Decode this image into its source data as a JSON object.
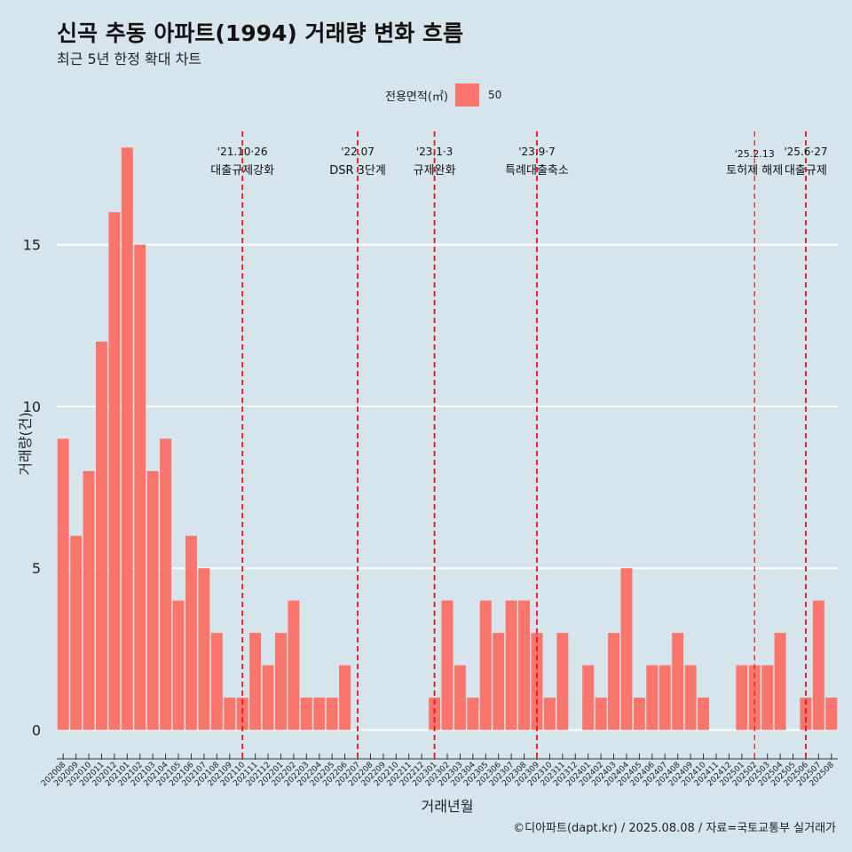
{
  "title": "신곡 추동 아파트(1994) 거래량 변화 흐름",
  "subtitle": "최근 5년 한정 확대 차트",
  "legend": {
    "title": "전용면적(㎡)",
    "entry": "50"
  },
  "caption": "©디아파트(dapt.kr) / 2025.08.08 / 자료=국토교통부 실거래가",
  "colors": {
    "background": "#d6e4ec",
    "bar": "#fa766d",
    "grid": "#ffffff",
    "event_line": "#e8141c"
  },
  "chart_data": {
    "type": "bar",
    "xlabel": "거래년월",
    "ylabel": "거래량(건)",
    "ylim": [
      -0.7,
      18.5
    ],
    "yticks": [
      0,
      5,
      10,
      15
    ],
    "grid": true,
    "legend_position": "top",
    "categories": [
      "202008",
      "202009",
      "202010",
      "202011",
      "202012",
      "202101",
      "202102",
      "202103",
      "202104",
      "202105",
      "202106",
      "202107",
      "202108",
      "202109",
      "202110",
      "202111",
      "202112",
      "202201",
      "202202",
      "202203",
      "202204",
      "202205",
      "202206",
      "202207",
      "202208",
      "202209",
      "202210",
      "202211",
      "202212",
      "202301",
      "202302",
      "202303",
      "202304",
      "202305",
      "202306",
      "202307",
      "202308",
      "202309",
      "202310",
      "202311",
      "202312",
      "202401",
      "202402",
      "202403",
      "202404",
      "202405",
      "202406",
      "202407",
      "202408",
      "202409",
      "202410",
      "202411",
      "202412",
      "202501",
      "202502",
      "202503",
      "202504",
      "202505",
      "202506",
      "202507",
      "202508"
    ],
    "series": [
      {
        "name": "50",
        "values": [
          9,
          6,
          8,
          12,
          16,
          18,
          15,
          8,
          9,
          4,
          6,
          5,
          3,
          1,
          1,
          3,
          2,
          3,
          4,
          1,
          1,
          1,
          2,
          0,
          0,
          0,
          0,
          0,
          0,
          1,
          4,
          2,
          1,
          4,
          3,
          4,
          4,
          3,
          1,
          3,
          0,
          2,
          1,
          3,
          5,
          1,
          2,
          2,
          3,
          2,
          1,
          0,
          0,
          2,
          2,
          2,
          3,
          0,
          1,
          4,
          1
        ]
      }
    ],
    "events": [
      {
        "category": "202110",
        "date": "'21.10·26",
        "label": "대출규제강화",
        "tier": 1
      },
      {
        "category": "202207",
        "date": "'22.07",
        "label": "DSR 3단계",
        "tier": 1
      },
      {
        "category": "202301",
        "date": "'23.1·3",
        "label": "규제완화",
        "tier": 1
      },
      {
        "category": "202309",
        "date": "'23.9·7",
        "label": "특례대출축소",
        "tier": 1
      },
      {
        "category": "202502",
        "date": "'25.2.13",
        "label": "토허제 해제",
        "tier": 2
      },
      {
        "category": "202506",
        "date": "'25.6·27",
        "label": "대출규제",
        "tier": 1
      }
    ]
  }
}
